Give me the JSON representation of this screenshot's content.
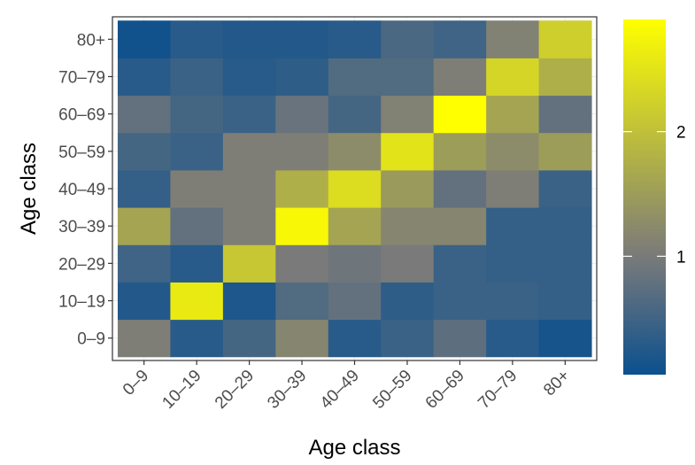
{
  "chart_data": {
    "type": "heatmap",
    "title": "",
    "xlabel": "Age class",
    "ylabel": "Age class",
    "x_categories": [
      "0–9",
      "10–19",
      "20–29",
      "30–39",
      "40–49",
      "50–59",
      "60–69",
      "70–79",
      "80+"
    ],
    "y_categories": [
      "0–9",
      "10–19",
      "20–29",
      "30–39",
      "40–49",
      "50–59",
      "60–69",
      "70–79",
      "80+"
    ],
    "rows_y_category_order": [
      "0–9",
      "10–19",
      "20–29",
      "30–39",
      "40–49",
      "50–59",
      "60–69",
      "70–79",
      "80+"
    ],
    "values": [
      [
        1.05,
        0.3,
        0.55,
        1.15,
        0.3,
        0.45,
        0.75,
        0.3,
        0.15
      ],
      [
        0.25,
        2.6,
        0.2,
        0.65,
        0.8,
        0.35,
        0.45,
        0.45,
        0.4
      ],
      [
        0.5,
        0.3,
        2.1,
        1.0,
        0.9,
        1.0,
        0.45,
        0.4,
        0.4
      ],
      [
        1.6,
        0.8,
        1.05,
        2.8,
        1.6,
        1.15,
        1.15,
        0.4,
        0.4
      ],
      [
        0.4,
        1.05,
        1.05,
        1.75,
        2.4,
        1.45,
        0.8,
        1.05,
        0.45
      ],
      [
        0.55,
        0.45,
        1.05,
        1.05,
        1.25,
        2.5,
        1.5,
        1.25,
        1.5
      ],
      [
        0.8,
        0.55,
        0.45,
        0.85,
        0.55,
        1.1,
        2.9,
        1.6,
        0.8
      ],
      [
        0.3,
        0.45,
        0.3,
        0.35,
        0.65,
        0.65,
        1.05,
        2.3,
        1.75
      ],
      [
        0.1,
        0.3,
        0.25,
        0.25,
        0.3,
        0.6,
        0.5,
        1.1,
        2.2
      ]
    ],
    "color_scale": {
      "low": "#0b508e",
      "mid": "#7a7a7a",
      "high": "#ffff00",
      "range": [
        0.05,
        2.9
      ],
      "breaks": [
        1,
        2
      ],
      "break_labels": [
        "1",
        "2"
      ]
    },
    "grid": true,
    "legend_placement": "right",
    "panel_border_color": "#333333",
    "grid_color": "#ebebeb"
  }
}
